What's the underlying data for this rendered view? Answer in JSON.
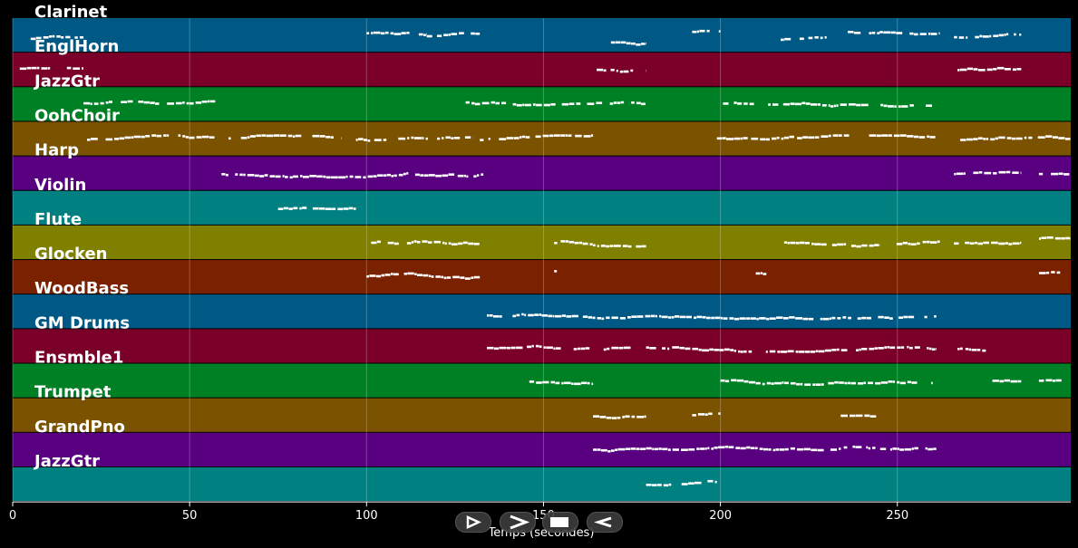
{
  "chart_data": {
    "type": "piano-roll",
    "xlabel": "Temps (secondes)",
    "xlim": [
      0,
      299
    ],
    "xticks": [
      0,
      50,
      100,
      150,
      200,
      250
    ],
    "grid": true,
    "note_color": "#ffffff",
    "background": "#000000",
    "tracks": [
      {
        "name": "Clarinet",
        "color": "#005985",
        "segments": [
          [
            2,
            20,
            0.6
          ],
          [
            100,
            117,
            0.45
          ],
          [
            117,
            132,
            0.5
          ],
          [
            167,
            179,
            0.7
          ],
          [
            192,
            200,
            0.4
          ],
          [
            217,
            230,
            0.6
          ],
          [
            236,
            245,
            0.4
          ],
          [
            245,
            262,
            0.4
          ],
          [
            266,
            285,
            0.55
          ]
        ]
      },
      {
        "name": "EnglHorn",
        "color": "#7a0029",
        "segments": [
          [
            2,
            20,
            0.45
          ],
          [
            165,
            179,
            0.5
          ],
          [
            266,
            285,
            0.5
          ]
        ]
      },
      {
        "name": "JazzGtr",
        "color": "#008025",
        "segments": [
          [
            20,
            58,
            0.45
          ],
          [
            128,
            179,
            0.45
          ],
          [
            199,
            261,
            0.45
          ]
        ]
      },
      {
        "name": "OohChoir",
        "color": "#7a5200",
        "segments": [
          [
            21,
            57,
            0.5
          ],
          [
            61,
            93,
            0.5
          ],
          [
            97,
            130,
            0.5
          ],
          [
            132,
            164,
            0.5
          ],
          [
            199,
            261,
            0.5
          ],
          [
            265,
            299,
            0.5
          ]
        ]
      },
      {
        "name": "Harp",
        "color": "#58007f",
        "segments": [
          [
            59,
            133,
            0.5
          ],
          [
            266,
            285,
            0.5
          ],
          [
            290,
            299,
            0.5
          ]
        ]
      },
      {
        "name": "Violin",
        "color": "#008080",
        "segments": [
          [
            75,
            97,
            0.55
          ]
        ]
      },
      {
        "name": "Flute",
        "color": "#7f7f00",
        "segments": [
          [
            100,
            132,
            0.5
          ],
          [
            153,
            179,
            0.5
          ],
          [
            218,
            245,
            0.5
          ],
          [
            248,
            262,
            0.5
          ],
          [
            266,
            285,
            0.5
          ],
          [
            290,
            299,
            0.4
          ]
        ]
      },
      {
        "name": "Glocken",
        "color": "#7a2100",
        "segments": [
          [
            100,
            132,
            0.45
          ],
          [
            153,
            159,
            0.35
          ],
          [
            210,
            213,
            0.4
          ],
          [
            290,
            296,
            0.35
          ]
        ]
      },
      {
        "name": "WoodBass",
        "color": "#005985",
        "segments": [
          [
            134,
            261,
            0.6
          ]
        ]
      },
      {
        "name": "GM Drums",
        "color": "#7a0029",
        "segments": [
          [
            134,
            163,
            0.55
          ],
          [
            167,
            175,
            0.6
          ],
          [
            179,
            261,
            0.55
          ],
          [
            267,
            275,
            0.6
          ]
        ]
      },
      {
        "name": "Ensmble1",
        "color": "#008025",
        "segments": [
          [
            146,
            164,
            0.5
          ],
          [
            200,
            260,
            0.5
          ],
          [
            275,
            285,
            0.5
          ],
          [
            290,
            299,
            0.5
          ]
        ]
      },
      {
        "name": "Trumpet",
        "color": "#7a5200",
        "segments": [
          [
            164,
            179,
            0.5
          ],
          [
            192,
            200,
            0.5
          ],
          [
            234,
            244,
            0.5
          ]
        ]
      },
      {
        "name": "GrandPno",
        "color": "#58007f",
        "segments": [
          [
            164,
            261,
            0.5
          ]
        ]
      },
      {
        "name": "JazzGtr",
        "color": "#008080",
        "segments": [
          [
            179,
            199,
            0.5
          ]
        ]
      }
    ]
  },
  "controls": [
    {
      "name": "play-button",
      "icon": "play-outline-icon"
    },
    {
      "name": "forward-button",
      "icon": "chevron-right-icon"
    },
    {
      "name": "stop-button",
      "icon": "stop-square-icon"
    },
    {
      "name": "rewind-button",
      "icon": "rewind-left-icon"
    }
  ]
}
